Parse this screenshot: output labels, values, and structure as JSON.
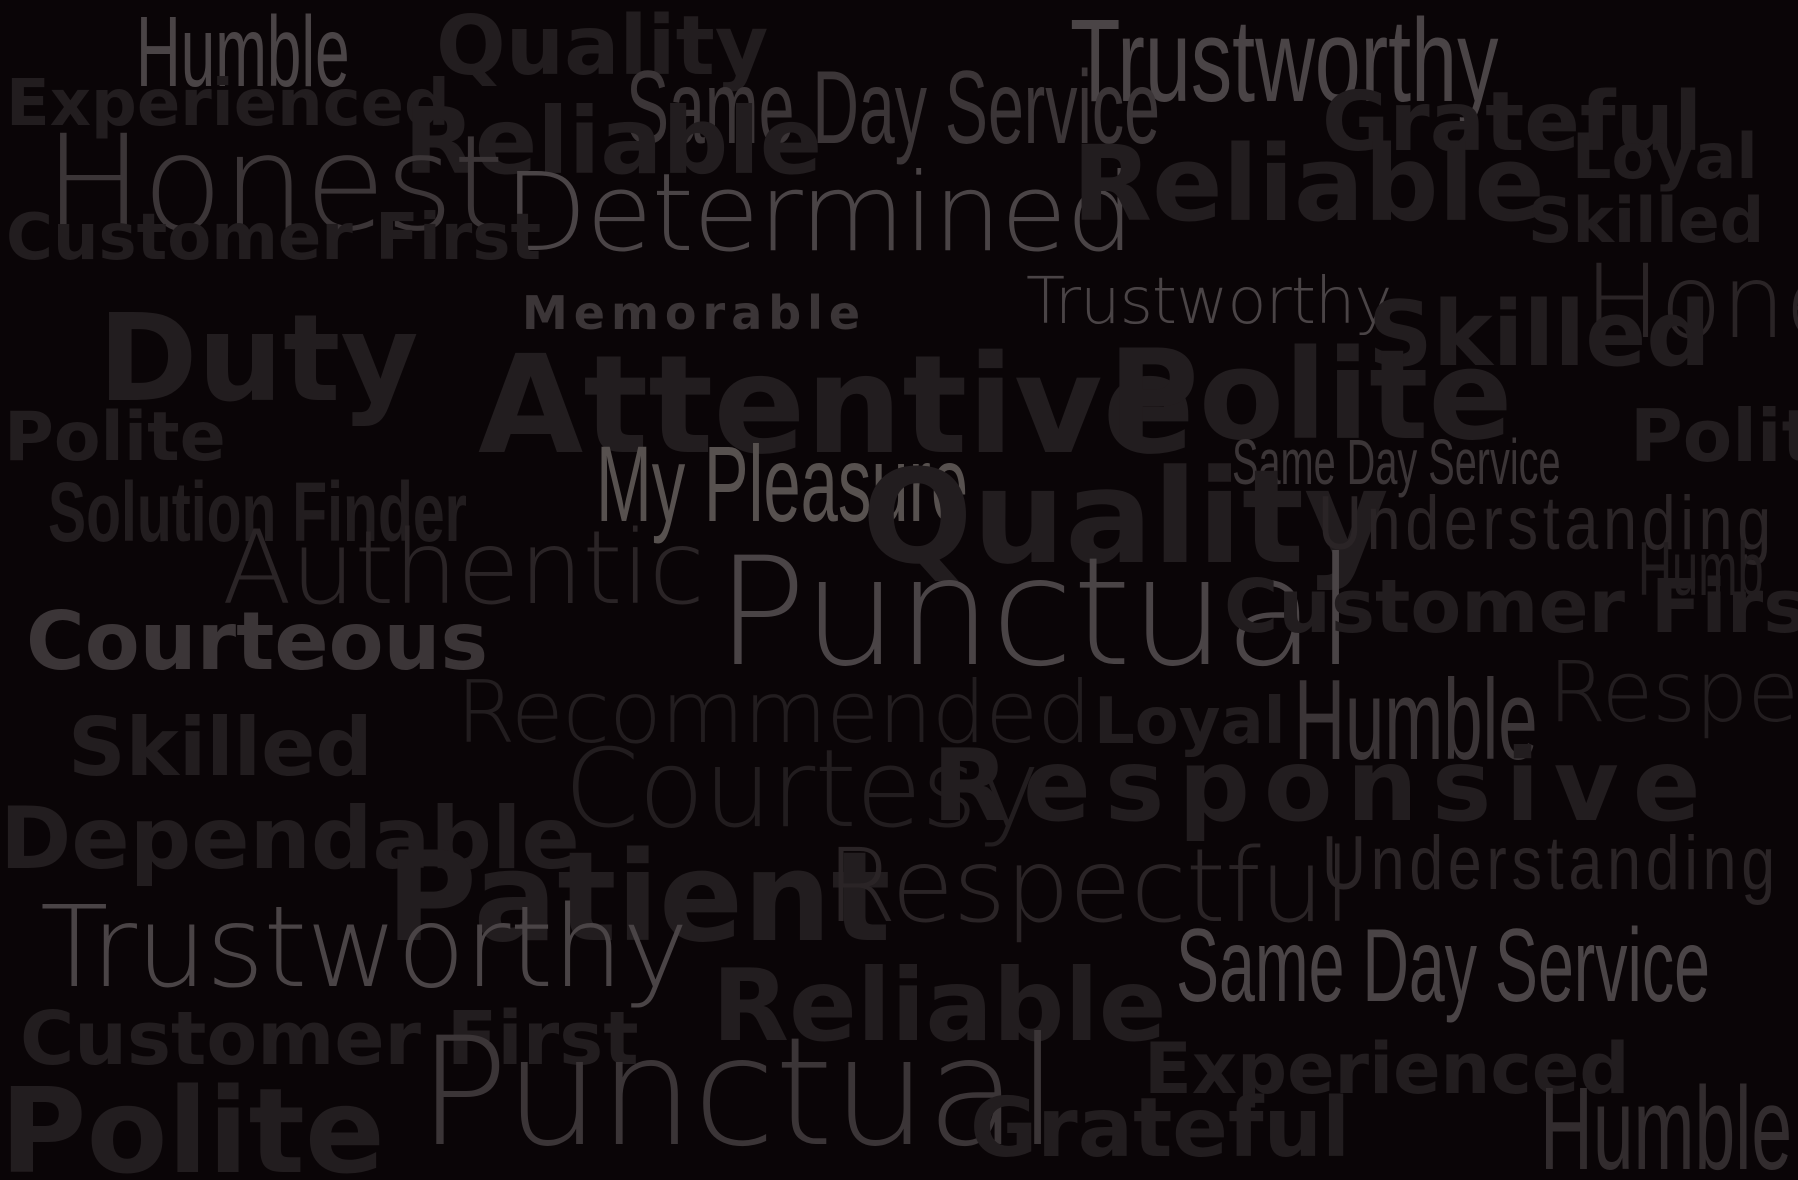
{
  "words": {
    "humble": "Humble",
    "quality": "Quality",
    "trustworthy": "Trustworthy",
    "experienced": "Experienced",
    "same_day_service": "Same Day Service",
    "grateful": "Grateful",
    "reliable": "Reliable",
    "honest": "Honest",
    "honest_partial": "Hone",
    "determined": "Determined",
    "loyal": "Loyal",
    "customer_first": "Customer First",
    "skilled": "Skilled",
    "memorable": "Memorable",
    "duty": "Duty",
    "attentive": "Attentive",
    "polite": "Polite",
    "polite_partial": "Polit",
    "my_pleasure": "My Pleasure",
    "solution_finder": "Solution Finder",
    "understanding": "Understanding",
    "understanding_partial": "Understanding",
    "humb_partial": "Humb",
    "authentic": "Authentic",
    "punctual": "Punctual",
    "courteous": "Courteous",
    "customer_first_partial": "Customer First",
    "recommended": "Recommended",
    "respect_partial": "Respec",
    "courtesy": "Courtesy",
    "responsive": "Responsive",
    "dependable": "Dependable",
    "patient": "Patient",
    "respectful": "Respectful"
  }
}
